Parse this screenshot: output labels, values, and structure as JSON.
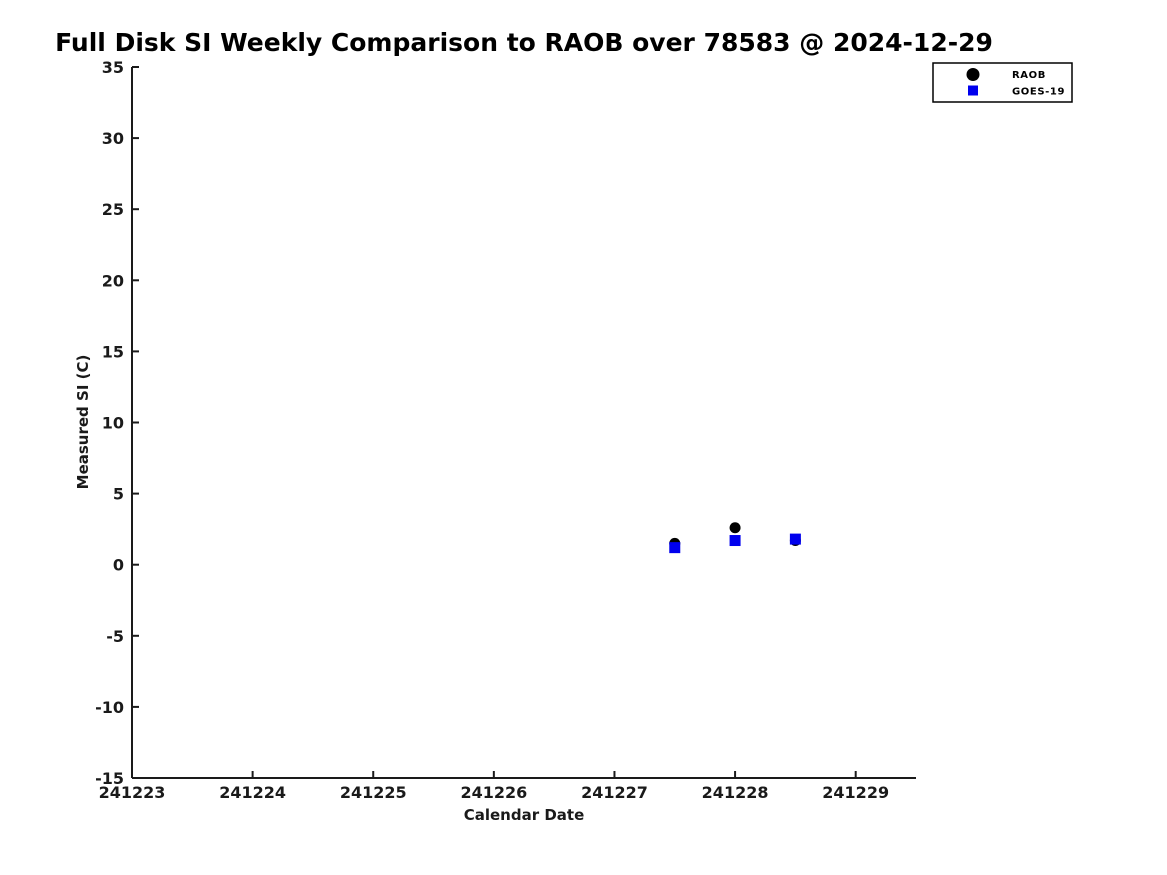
{
  "figure": {
    "background": "#ffffff"
  },
  "chart_data": {
    "type": "scatter",
    "title": "Full Disk SI Weekly Comparison to RAOB over 78583 @ 2024-12-29",
    "xlabel": "Calendar Date",
    "ylabel": "Measured SI (C)",
    "xlim": [
      241223,
      241229.5
    ],
    "ylim": [
      -15,
      35
    ],
    "xticks": [
      241223,
      241224,
      241225,
      241226,
      241227,
      241228,
      241229
    ],
    "yticks": [
      -15,
      -10,
      -5,
      0,
      5,
      10,
      15,
      20,
      25,
      30,
      35
    ],
    "grid": false,
    "axis_color": "#1a1a1a",
    "legend_position": "top-right-outside-axes",
    "series": [
      {
        "name": "RAOB",
        "marker": "circle",
        "color": "#000000",
        "points": [
          [
            241227.5,
            1.5
          ],
          [
            241228.0,
            2.6
          ],
          [
            241228.5,
            1.7
          ]
        ]
      },
      {
        "name": "GOES-19",
        "marker": "square",
        "color": "#0000ee",
        "points": [
          [
            241227.5,
            1.2
          ],
          [
            241228.0,
            1.7
          ],
          [
            241228.5,
            1.8
          ]
        ]
      }
    ]
  }
}
